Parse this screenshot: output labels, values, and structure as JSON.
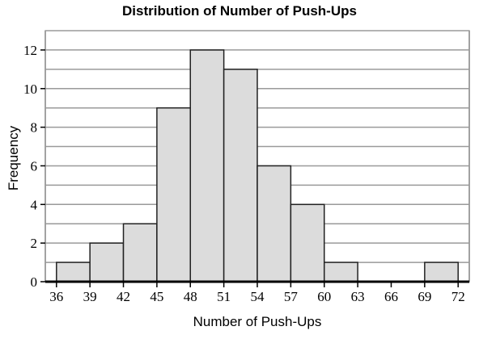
{
  "chart_data": {
    "type": "bar",
    "title": "Distribution of Number of Push-Ups",
    "xlabel": "Number of Push-Ups",
    "ylabel": "Frequency",
    "bin_edges": [
      36,
      39,
      42,
      45,
      48,
      51,
      54,
      57,
      60,
      63,
      66,
      69,
      72
    ],
    "values": [
      1,
      2,
      3,
      9,
      12,
      11,
      6,
      4,
      1,
      0,
      0,
      1
    ],
    "x_ticks": [
      36,
      39,
      42,
      45,
      48,
      51,
      54,
      57,
      60,
      63,
      66,
      69,
      72
    ],
    "y_ticks": [
      0,
      2,
      4,
      6,
      8,
      10,
      12
    ],
    "xlim": [
      35,
      73
    ],
    "ylim": [
      0,
      13
    ],
    "grid": true,
    "colors": {
      "bar_fill": "#dcdcdc",
      "bar_stroke": "#222222",
      "grid": "#9a9a9a"
    }
  }
}
